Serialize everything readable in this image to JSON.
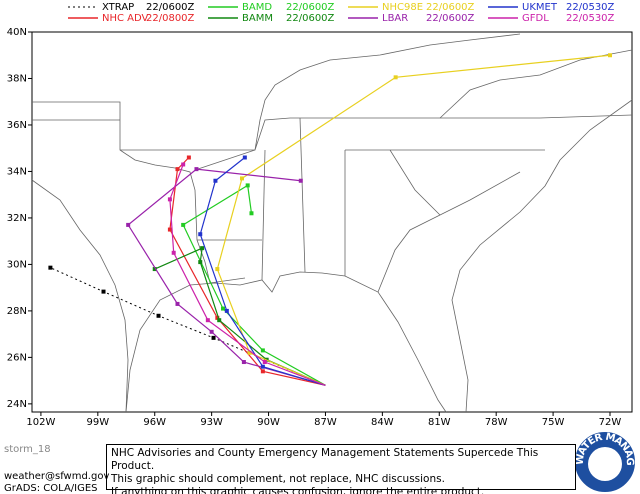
{
  "chart_data": {
    "type": "line",
    "xlim": [
      -102.47,
      -70.84
    ],
    "ylim": [
      23.65,
      40
    ],
    "xticks": [
      {
        "value": -102,
        "label": "102W"
      },
      {
        "value": -99,
        "label": "99W"
      },
      {
        "value": -96,
        "label": "96W"
      },
      {
        "value": -93,
        "label": "93W"
      },
      {
        "value": -90,
        "label": "90W"
      },
      {
        "value": -87,
        "label": "87W"
      },
      {
        "value": -84,
        "label": "84W"
      },
      {
        "value": -81,
        "label": "81W"
      },
      {
        "value": -78,
        "label": "78W"
      },
      {
        "value": -75,
        "label": "75W"
      },
      {
        "value": -72,
        "label": "72W"
      }
    ],
    "yticks": [
      {
        "value": 24,
        "label": "24N"
      },
      {
        "value": 26,
        "label": "26N"
      },
      {
        "value": 28,
        "label": "28N"
      },
      {
        "value": 30,
        "label": "30N"
      },
      {
        "value": 32,
        "label": "32N"
      },
      {
        "value": 34,
        "label": "34N"
      },
      {
        "value": 36,
        "label": "36N"
      },
      {
        "value": 38,
        "label": "38N"
      },
      {
        "value": 40,
        "label": "40N"
      }
    ],
    "series": [
      {
        "name": "XTRAP",
        "time": "22/0600Z",
        "color": "#000000",
        "dotted": true,
        "x": [
          -87.0,
          -92.9,
          -95.8,
          -98.7,
          -101.5
        ],
        "values": [
          24.8,
          26.84,
          27.79,
          28.83,
          29.86
        ]
      },
      {
        "name": "NHC ADV",
        "time": "22/0800Z",
        "color": "#e8262a",
        "x": [
          -87.0,
          -90.3,
          -92.7,
          -95.2,
          -94.8,
          -94.2
        ],
        "values": [
          24.8,
          25.4,
          27.7,
          31.5,
          34.1,
          34.6
        ]
      },
      {
        "name": "BAMD",
        "time": "22/0600Z",
        "color": "#22cc22",
        "x": [
          -87.0,
          -90.3,
          -92.4,
          -94.5,
          -91.1,
          -90.9
        ],
        "values": [
          24.8,
          26.3,
          28.1,
          31.7,
          33.4,
          32.2
        ]
      },
      {
        "name": "BAMM",
        "time": "22/0600Z",
        "color": "#118811",
        "x": [
          -87.0,
          -90.1,
          -92.6,
          -93.6,
          -93.5,
          -96.0
        ],
        "values": [
          24.8,
          25.9,
          27.6,
          30.1,
          30.7,
          29.8
        ]
      },
      {
        "name": "NHC98E",
        "time": "22/0600Z",
        "color": "#e8d020",
        "x": [
          -87.0,
          -91.0,
          -92.7,
          -91.4,
          -83.3,
          -72.0
        ],
        "values": [
          24.8,
          26.2,
          29.8,
          33.7,
          38.05,
          39.0
        ]
      },
      {
        "name": "LBAR",
        "time": "22/0600Z",
        "color": "#9922aa",
        "x": [
          -87.0,
          -91.3,
          -93.0,
          -94.8,
          -97.4,
          -93.8,
          -88.3
        ],
        "values": [
          24.8,
          25.8,
          27.1,
          28.3,
          31.7,
          34.1,
          33.6
        ]
      },
      {
        "name": "UKMET",
        "time": "22/0530Z",
        "color": "#2233cc",
        "x": [
          -87.0,
          -90.3,
          -92.2,
          -93.6,
          -92.8,
          -91.25
        ],
        "values": [
          24.8,
          25.6,
          28.0,
          31.3,
          33.6,
          34.6
        ]
      },
      {
        "name": "GFDL",
        "time": "22/0530Z",
        "color": "#cc22aa",
        "x": [
          -87.0,
          -90.2,
          -93.2,
          -95.0,
          -95.2,
          -94.5
        ],
        "values": [
          24.8,
          25.8,
          27.6,
          30.5,
          32.8,
          34.3
        ]
      }
    ]
  },
  "footer": {
    "storm": "storm_18",
    "email": "weather@sfwmd.gov",
    "credit": "GrADS: COLA/IGES",
    "notice": [
      "NHC Advisories and County Emergency Management Statements Supercede This Product.",
      "This graphic should complement, not replace, NHC discussions.",
      "If anything on this graphic causes confusion, ignore the entire product."
    ],
    "logo": "SOUTH FLORIDA WATER MANAGEMENT DISTRICT"
  }
}
